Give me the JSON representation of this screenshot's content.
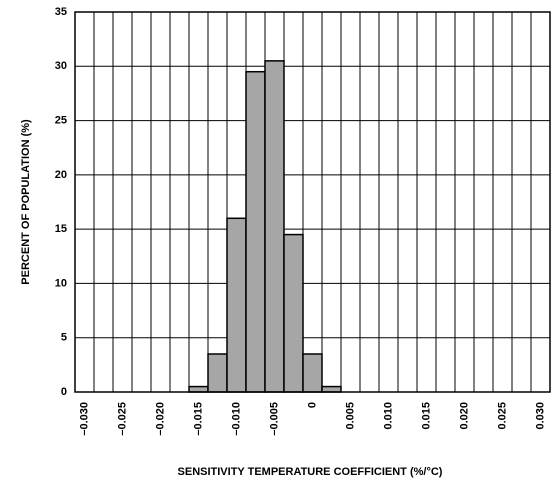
{
  "chart_data": {
    "type": "histogram",
    "xlabel": "SENSITIVITY TEMPERATURE COEFFICIENT  (%/°C)",
    "ylabel": "PERCENT OF POPULATION (%)",
    "bins": [
      -0.03125,
      -0.02875,
      -0.02625,
      -0.02375,
      -0.02125,
      -0.01875,
      -0.01625,
      -0.01375,
      -0.01125,
      -0.00875,
      -0.00625,
      -0.00375,
      -0.00125,
      0.00125,
      0.00375,
      0.00625,
      0.00875,
      0.01125,
      0.01375,
      0.01625,
      0.01875,
      0.02125,
      0.02375,
      0.02625,
      0.02875,
      0.03125
    ],
    "values": [
      0,
      0,
      0,
      0,
      0,
      0,
      0.5,
      3.5,
      16,
      29.5,
      30.5,
      14.5,
      3.5,
      0.5,
      0,
      0,
      0,
      0,
      0,
      0,
      0,
      0,
      0,
      0,
      0
    ],
    "color": "#a6a6a6",
    "xlim": [
      -0.03125,
      0.03125
    ],
    "xticks": [
      {
        "value": -0.03,
        "label": "–0.030"
      },
      {
        "value": -0.025,
        "label": "–0.025"
      },
      {
        "value": -0.02,
        "label": "–0.020"
      },
      {
        "value": -0.015,
        "label": "–0.015"
      },
      {
        "value": -0.01,
        "label": "–0.010"
      },
      {
        "value": -0.005,
        "label": "–0.005"
      },
      0,
      0.005,
      {
        "value": 0.01,
        "label": "0.010"
      },
      0.015,
      {
        "value": 0.02,
        "label": "0.020"
      },
      0.025,
      {
        "value": 0.03,
        "label": "0.030"
      }
    ],
    "ylim": [
      0,
      35
    ],
    "yticks": [
      0,
      5,
      10,
      15,
      20,
      25,
      30,
      35
    ],
    "grid": true
  }
}
